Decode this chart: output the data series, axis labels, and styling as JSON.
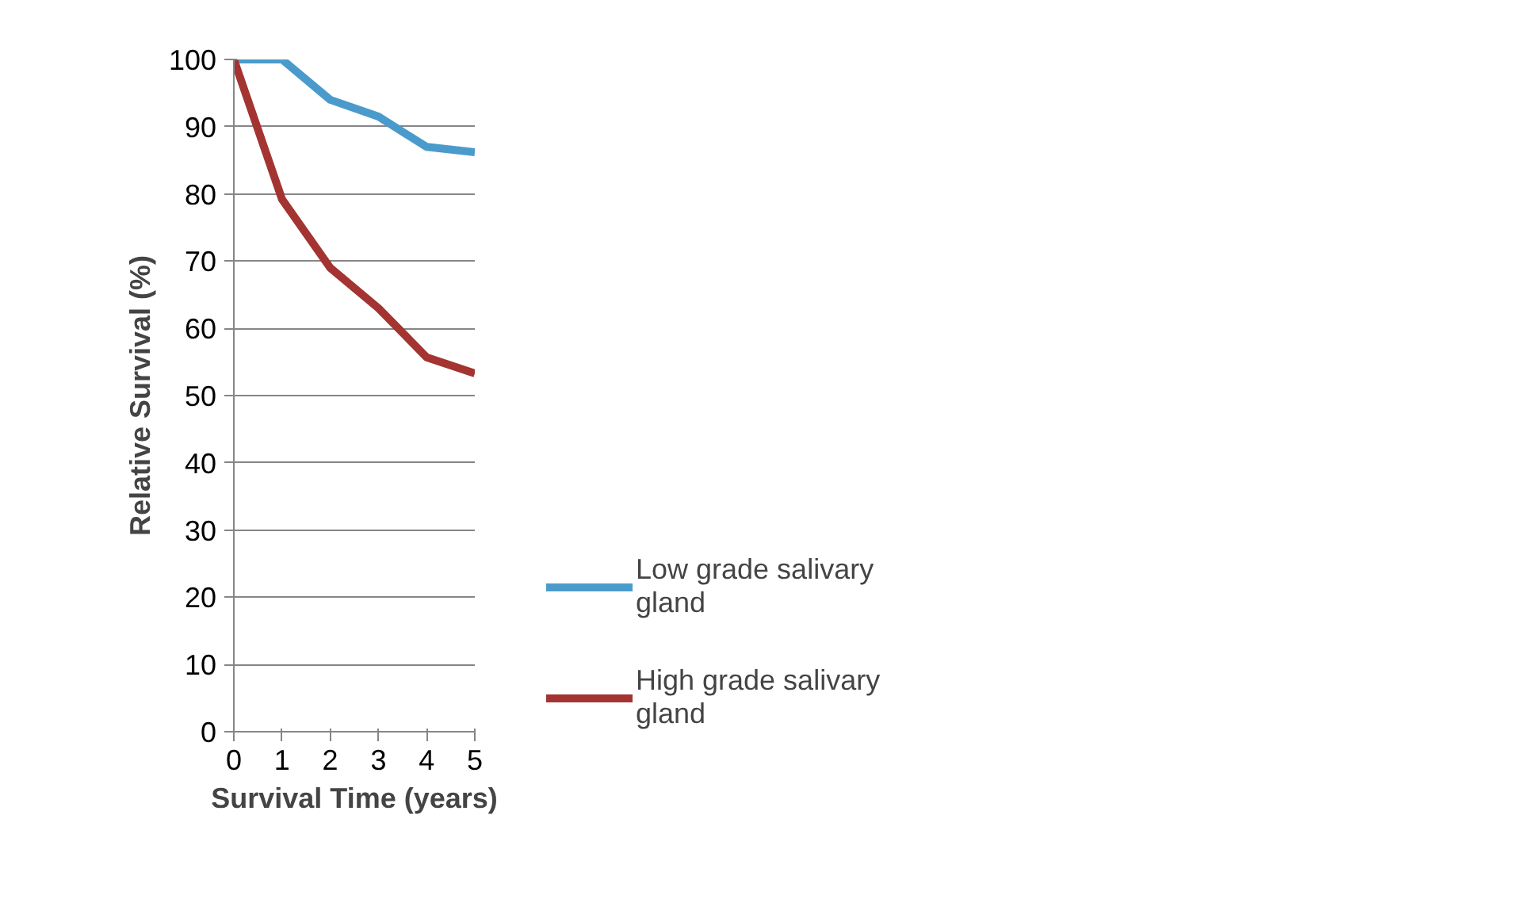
{
  "chart_data": {
    "type": "line",
    "xlabel": "Survival Time (years)",
    "ylabel": "Relative Survival (%)",
    "x": [
      0,
      1,
      2,
      3,
      4,
      5
    ],
    "xlim": [
      0,
      5
    ],
    "xticks": [
      0,
      1,
      2,
      3,
      4,
      5
    ],
    "ylim": [
      0,
      100
    ],
    "yticks": [
      0,
      10,
      20,
      30,
      40,
      50,
      60,
      70,
      80,
      90,
      100
    ],
    "grid": "y",
    "legend": "right",
    "marker": "none",
    "line_style": "solid",
    "series": [
      {
        "name": "Low grade salivary gland",
        "color": "#4a9bcb",
        "values": [
          100,
          100,
          94,
          91.5,
          87,
          86.2
        ]
      },
      {
        "name": "High grade salivary gland",
        "color": "#a33431",
        "values": [
          100,
          79.2,
          69,
          63,
          55.7,
          53.3
        ]
      }
    ]
  }
}
